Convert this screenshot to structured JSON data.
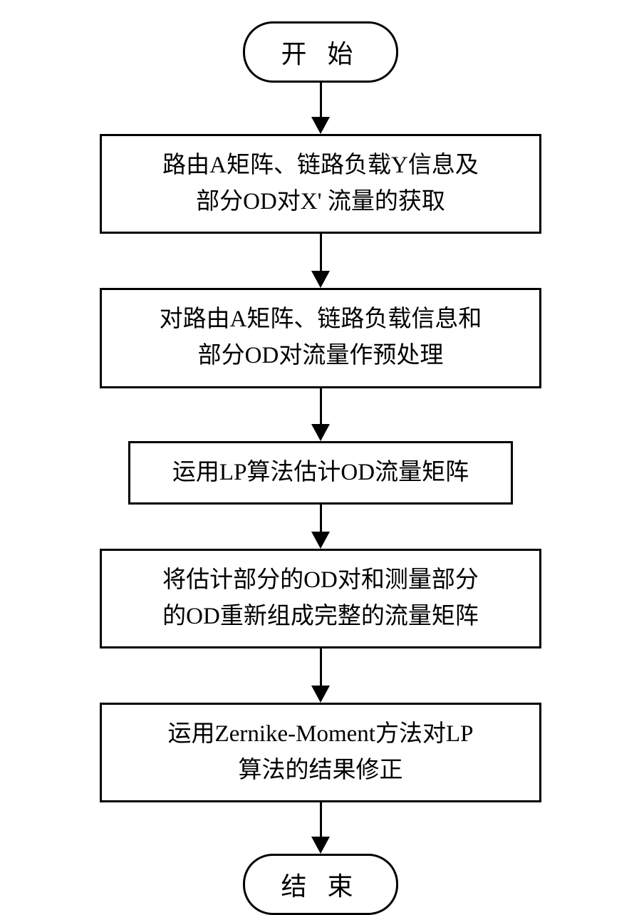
{
  "flowchart": {
    "type": "flowchart",
    "background_color": "#ffffff",
    "border_color": "#000000",
    "border_width": 3,
    "font_family": "SimSun",
    "font_size": 33,
    "terminal_font_size": 36,
    "terminal_border_radius": 42,
    "arrow_head_size": 24,
    "nodes": {
      "start": {
        "type": "terminal",
        "label": "开 始"
      },
      "step1": {
        "type": "process",
        "label_line1": "路由A矩阵、链路负载Y信息及",
        "label_line2": "部分OD对X' 流量的获取"
      },
      "step2": {
        "type": "process",
        "label_line1": "对路由A矩阵、链路负载信息和",
        "label_line2": "部分OD对流量作预处理"
      },
      "step3": {
        "type": "process",
        "label": "运用LP算法估计OD流量矩阵"
      },
      "step4": {
        "type": "process",
        "label_line1": "将估计部分的OD对和测量部分",
        "label_line2": "的OD重新组成完整的流量矩阵"
      },
      "step5": {
        "type": "process",
        "label_line1": "运用Zernike-Moment方法对LP",
        "label_line2": "算法的结果修正"
      },
      "end": {
        "type": "terminal",
        "label": "结 束"
      }
    },
    "arrow_heights": {
      "a1": 48,
      "a2": 52,
      "a3": 50,
      "a4": 38,
      "a5": 52,
      "a6": 48,
      "a7": 48
    }
  }
}
